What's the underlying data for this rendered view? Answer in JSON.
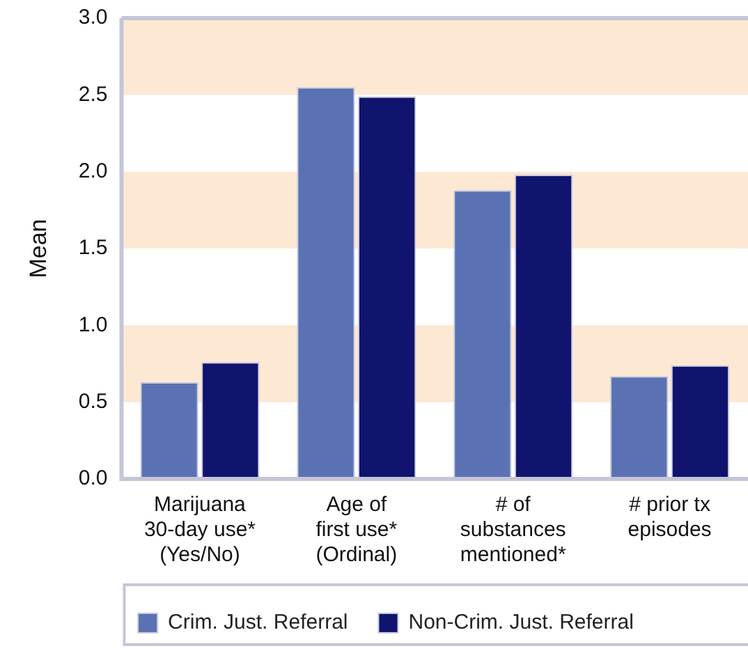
{
  "chart_data": {
    "type": "bar",
    "ylabel": "Mean",
    "categories": [
      "Marijuana\n30-day use*\n(Yes/No)",
      "Age of\nfirst use*\n(Ordinal)",
      "# of\nsubstances\nmentioned*",
      "# prior tx\nepisodes"
    ],
    "series": [
      {
        "name": "Crim. Just. Referral",
        "color": "#5a72b4",
        "values": [
          0.63,
          2.55,
          1.88,
          0.67
        ]
      },
      {
        "name": "Non-Crim. Just. Referral",
        "color": "#10146e",
        "values": [
          0.76,
          2.49,
          1.98,
          0.74
        ]
      }
    ],
    "ylim": [
      0,
      3
    ],
    "yticks": [
      {
        "value": 0,
        "label": "0.0"
      },
      {
        "value": 0.5,
        "label": "0.5"
      },
      {
        "value": 1,
        "label": "1.0"
      },
      {
        "value": 1.5,
        "label": "1.5"
      },
      {
        "value": 2,
        "label": "2.0"
      },
      {
        "value": 2.5,
        "label": "2.5"
      },
      {
        "value": 3,
        "label": "3.0"
      }
    ],
    "bands": [
      {
        "axis": "y",
        "from": 0.5,
        "to": 1,
        "color": "#fde8d3"
      },
      {
        "axis": "y",
        "from": 1.5,
        "to": 2,
        "color": "#fde8d3"
      },
      {
        "axis": "y",
        "from": 2.5,
        "to": 3,
        "color": "#fde8d3"
      }
    ],
    "grid": false,
    "legend": "bottom"
  }
}
